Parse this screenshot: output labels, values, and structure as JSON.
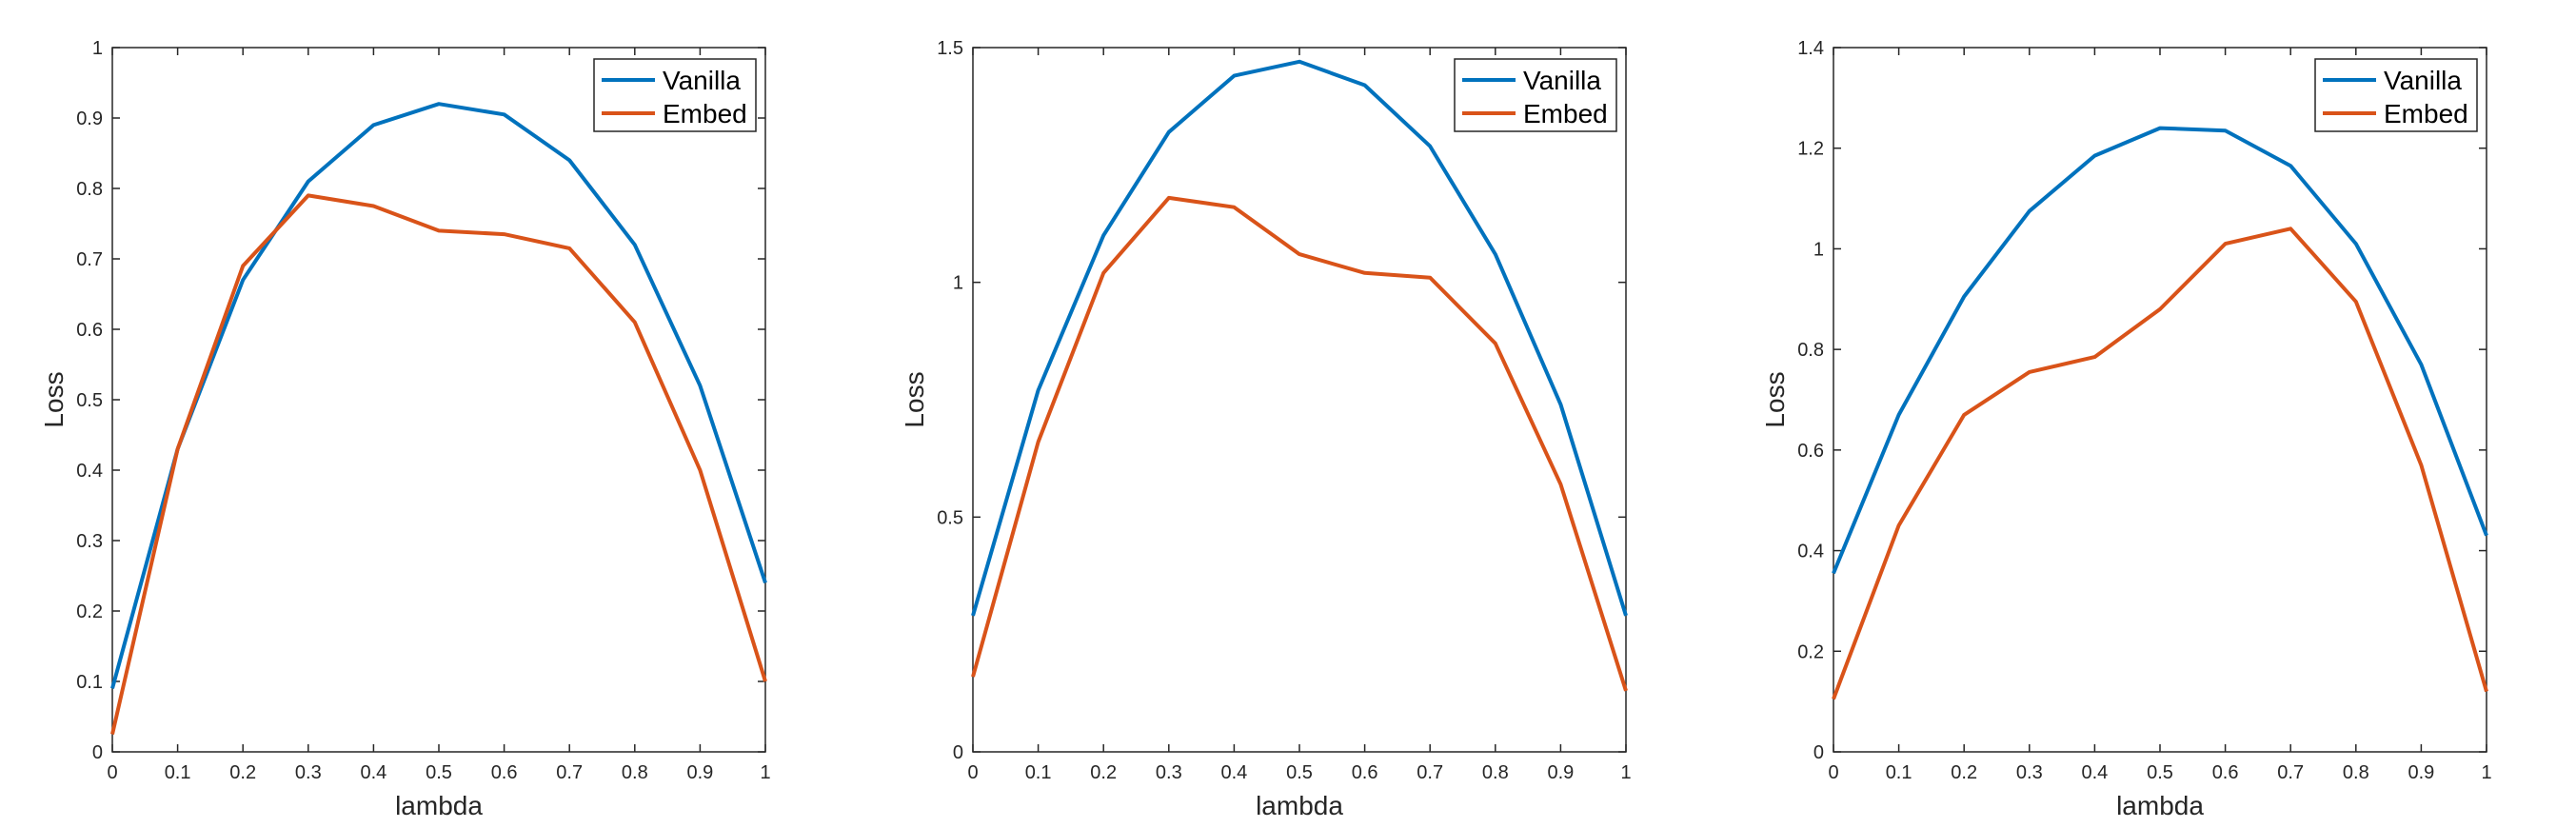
{
  "chart_data": [
    {
      "type": "line",
      "title": "",
      "xlabel": "lambda",
      "ylabel": "Loss",
      "xlim": [
        0,
        1
      ],
      "ylim": [
        0,
        1
      ],
      "x": [
        0,
        0.1,
        0.2,
        0.3,
        0.4,
        0.5,
        0.6,
        0.7,
        0.8,
        0.9,
        1
      ],
      "xticks": [
        "0",
        "0.1",
        "0.2",
        "0.3",
        "0.4",
        "0.5",
        "0.6",
        "0.7",
        "0.8",
        "0.9",
        "1"
      ],
      "yticks": [
        "0",
        "0.1",
        "0.2",
        "0.3",
        "0.4",
        "0.5",
        "0.6",
        "0.7",
        "0.8",
        "0.9",
        "1"
      ],
      "legend_position": "top-right",
      "series": [
        {
          "name": "Vanilla",
          "color": "#0072BD",
          "values": [
            0.09,
            0.43,
            0.67,
            0.81,
            0.89,
            0.92,
            0.905,
            0.84,
            0.72,
            0.52,
            0.24
          ]
        },
        {
          "name": "Embed",
          "color": "#D95319",
          "values": [
            0.025,
            0.43,
            0.69,
            0.79,
            0.775,
            0.74,
            0.735,
            0.715,
            0.61,
            0.4,
            0.1
          ]
        }
      ]
    },
    {
      "type": "line",
      "title": "",
      "xlabel": "lambda",
      "ylabel": "Loss",
      "xlim": [
        0,
        1
      ],
      "ylim": [
        0,
        1.5
      ],
      "x": [
        0,
        0.1,
        0.2,
        0.3,
        0.4,
        0.5,
        0.6,
        0.7,
        0.8,
        0.9,
        1
      ],
      "xticks": [
        "0",
        "0.1",
        "0.2",
        "0.3",
        "0.4",
        "0.5",
        "0.6",
        "0.7",
        "0.8",
        "0.9",
        "1"
      ],
      "yticks": [
        "0",
        "0.5",
        "1",
        "1.5"
      ],
      "legend_position": "top-right",
      "series": [
        {
          "name": "Vanilla",
          "color": "#0072BD",
          "values": [
            0.29,
            0.77,
            1.1,
            1.32,
            1.44,
            1.47,
            1.42,
            1.29,
            1.06,
            0.74,
            0.29
          ]
        },
        {
          "name": "Embed",
          "color": "#D95319",
          "values": [
            0.16,
            0.66,
            1.02,
            1.18,
            1.16,
            1.06,
            1.02,
            1.01,
            0.87,
            0.57,
            0.13
          ]
        }
      ]
    },
    {
      "type": "line",
      "title": "",
      "xlabel": "lambda",
      "ylabel": "Loss",
      "xlim": [
        0,
        1
      ],
      "ylim": [
        0,
        1.4
      ],
      "x": [
        0,
        0.1,
        0.2,
        0.3,
        0.4,
        0.5,
        0.6,
        0.7,
        0.8,
        0.9,
        1
      ],
      "xticks": [
        "0",
        "0.1",
        "0.2",
        "0.3",
        "0.4",
        "0.5",
        "0.6",
        "0.7",
        "0.8",
        "0.9",
        "1"
      ],
      "yticks": [
        "0",
        "0.2",
        "0.4",
        "0.6",
        "0.8",
        "1",
        "1.2",
        "1.4"
      ],
      "legend_position": "top-right",
      "series": [
        {
          "name": "Vanilla",
          "color": "#0072BD",
          "values": [
            0.355,
            0.67,
            0.905,
            1.075,
            1.185,
            1.24,
            1.235,
            1.165,
            1.01,
            0.77,
            0.43
          ]
        },
        {
          "name": "Embed",
          "color": "#D95319",
          "values": [
            0.105,
            0.45,
            0.67,
            0.755,
            0.785,
            0.88,
            1.01,
            1.04,
            0.895,
            0.57,
            0.12
          ]
        }
      ]
    }
  ]
}
